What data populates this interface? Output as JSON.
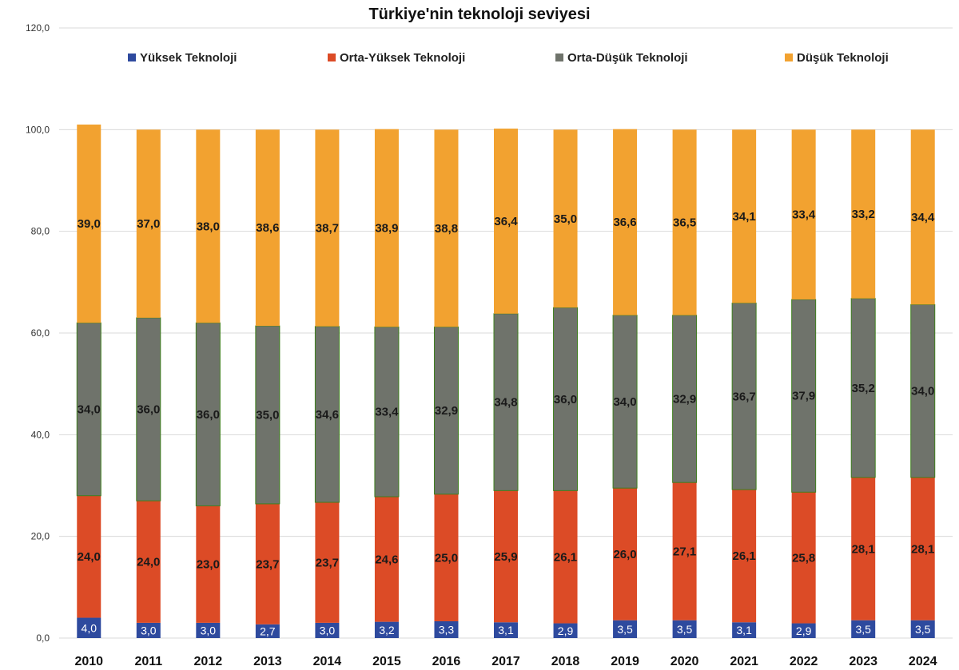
{
  "chart_data": {
    "type": "bar",
    "stacked": true,
    "title": "Türkiye'nin teknoloji seviyesi",
    "xlabel": "",
    "ylabel": "",
    "ylim": [
      0,
      120
    ],
    "yticks": [
      "0,0",
      "20,0",
      "40,0",
      "60,0",
      "80,0",
      "100,0",
      "120,0"
    ],
    "grid": true,
    "legend_position": "top",
    "categories": [
      "2010",
      "2011",
      "2012",
      "2013",
      "2014",
      "2015",
      "2016",
      "2017",
      "2018",
      "2019",
      "2020",
      "2021",
      "2022",
      "2023",
      "2024"
    ],
    "series": [
      {
        "name": "Yüksek Teknoloji",
        "color": "#2e4a9e",
        "values": [
          4.0,
          3.0,
          3.0,
          2.7,
          3.0,
          3.2,
          3.3,
          3.1,
          2.9,
          3.5,
          3.5,
          3.1,
          2.9,
          3.5,
          3.5
        ],
        "labels": [
          "4,0",
          "3,0",
          "3,0",
          "2,7",
          "3,0",
          "3,2",
          "3,3",
          "3,1",
          "2,9",
          "3,5",
          "3,5",
          "3,1",
          "2,9",
          "3,5",
          "3,5"
        ]
      },
      {
        "name": "Orta-Yüksek Teknoloji",
        "color": "#dc4b26",
        "values": [
          24.0,
          24.0,
          23.0,
          23.7,
          23.7,
          24.6,
          25.0,
          25.9,
          26.1,
          26.0,
          27.1,
          26.1,
          25.8,
          28.1,
          28.1
        ],
        "labels": [
          "24,0",
          "24,0",
          "23,0",
          "23,7",
          "23,7",
          "24,6",
          "25,0",
          "25,9",
          "26,1",
          "26,0",
          "27,1",
          "26,1",
          "25,8",
          "28,1",
          "28,1"
        ]
      },
      {
        "name": "Orta-Düşük Teknoloji",
        "color": "#6f736b",
        "values": [
          34.0,
          36.0,
          36.0,
          35.0,
          34.6,
          33.4,
          32.9,
          34.8,
          36.0,
          34.0,
          32.9,
          36.7,
          37.9,
          35.2,
          34.0
        ],
        "labels": [
          "34,0",
          "36,0",
          "36,0",
          "35,0",
          "34,6",
          "33,4",
          "32,9",
          "34,8",
          "36,0",
          "34,0",
          "32,9",
          "36,7",
          "37,9",
          "35,2",
          "34,0"
        ]
      },
      {
        "name": "Düşük Teknoloji",
        "color": "#f2a230",
        "values": [
          39.0,
          37.0,
          38.0,
          38.6,
          38.7,
          38.9,
          38.8,
          36.4,
          35.0,
          36.6,
          36.5,
          34.1,
          33.4,
          33.2,
          34.4
        ],
        "labels": [
          "39,0",
          "37,0",
          "38,0",
          "38,6",
          "38,7",
          "38,9",
          "38,8",
          "36,4",
          "35,0",
          "36,6",
          "36,5",
          "34,1",
          "33,4",
          "33,2",
          "34,4"
        ]
      }
    ]
  }
}
